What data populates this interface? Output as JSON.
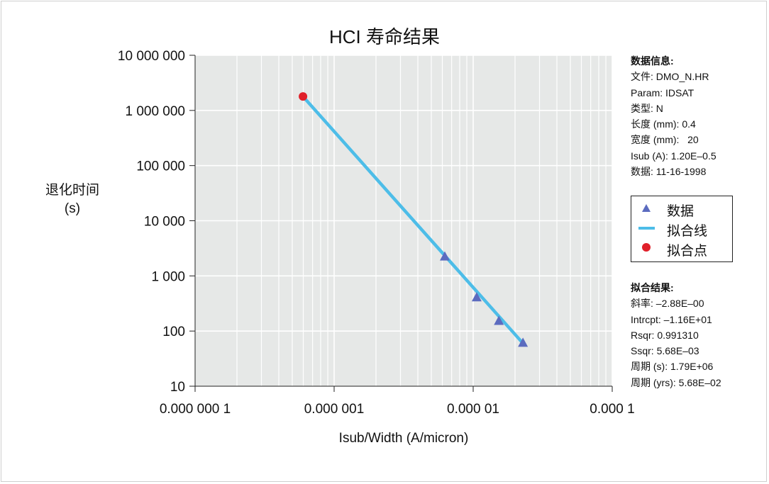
{
  "chart_data": {
    "type": "scatter",
    "title": "HCI 寿命结果",
    "xlabel": "Isub/Width (A/micron)",
    "ylabel": [
      "退化时间",
      "(s)"
    ],
    "x_scale": "log",
    "y_scale": "log",
    "xlim": [
      1e-07,
      0.0001
    ],
    "ylim": [
      10,
      10000000
    ],
    "x_ticks": [
      "0.000 000 1",
      "0.000 001",
      "0.000 01",
      "0.000 1"
    ],
    "y_ticks": [
      "10",
      "100",
      "1 000",
      "10 000",
      "100 000",
      "1 000 000",
      "10 000 000"
    ],
    "grid": true,
    "series": [
      {
        "name": "数据",
        "marker": "triangle",
        "color": "#5b6bbf",
        "x": [
          6.25e-06,
          1.06e-05,
          1.53e-05,
          2.28e-05
        ],
        "y": [
          2200,
          400,
          150,
          60
        ]
      },
      {
        "name": "拟合线",
        "marker": "line",
        "color": "#4dbde8",
        "x": [
          5.97e-07,
          2.28e-05
        ],
        "y": [
          1790000,
          60
        ]
      },
      {
        "name": "拟合点",
        "marker": "circle",
        "color": "#e0202a",
        "x": [
          5.97e-07
        ],
        "y": [
          1790000
        ]
      }
    ],
    "legend_position": "right"
  },
  "info": {
    "heading": "数据信息:",
    "lines": [
      "文件: DMO_N.HR",
      "Param: IDSAT",
      "类型: N",
      "长度 (mm): 0.4",
      "宽度 (mm):   20",
      "Isub (A): 1.20E–0.5",
      "数据: 11-16-1998"
    ]
  },
  "fit": {
    "heading": "拟合结果:",
    "lines": [
      "斜率: –2.88E–00",
      "Intrcpt: –1.16E+01",
      "Rsqr: 0.991310",
      "Ssqr: 5.68E–03",
      "周期 (s): 1.79E+06",
      "周期 (yrs): 5.68E–02"
    ]
  }
}
